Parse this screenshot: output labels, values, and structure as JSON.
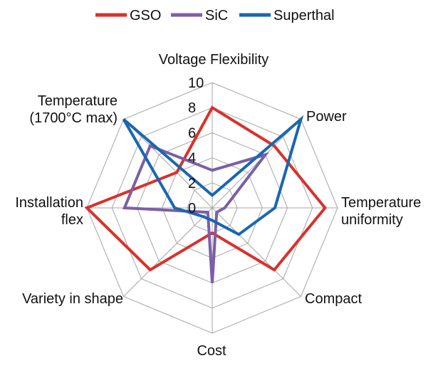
{
  "chart_data": {
    "type": "radar",
    "axes": [
      [
        "Voltage Flexibility"
      ],
      [
        "Power"
      ],
      [
        "Temperature",
        "uniformity"
      ],
      [
        "Compact"
      ],
      [
        "Cost"
      ],
      [
        "Variety in shape"
      ],
      [
        "Installation",
        "flex"
      ],
      [
        "Temperature",
        "(1700°C max)"
      ]
    ],
    "rlim": [
      0,
      10
    ],
    "ticks": [
      "0",
      "2",
      "4",
      "6",
      "8",
      "10"
    ],
    "tick_values": [
      0,
      2,
      4,
      6,
      8,
      10
    ],
    "grid": true,
    "legend_position": "top",
    "series": [
      {
        "name": "GSO",
        "color": "#d9312b",
        "values": [
          8,
          7,
          9,
          7,
          2,
          7,
          10,
          4
        ]
      },
      {
        "name": "SiC",
        "color": "#7b5ea8",
        "values": [
          3,
          6,
          1,
          0.5,
          6,
          0.5,
          7,
          7
        ]
      },
      {
        "name": "Superthal",
        "color": "#1a66b1",
        "values": [
          1,
          10,
          5,
          3,
          1,
          1,
          3,
          10
        ]
      }
    ]
  }
}
